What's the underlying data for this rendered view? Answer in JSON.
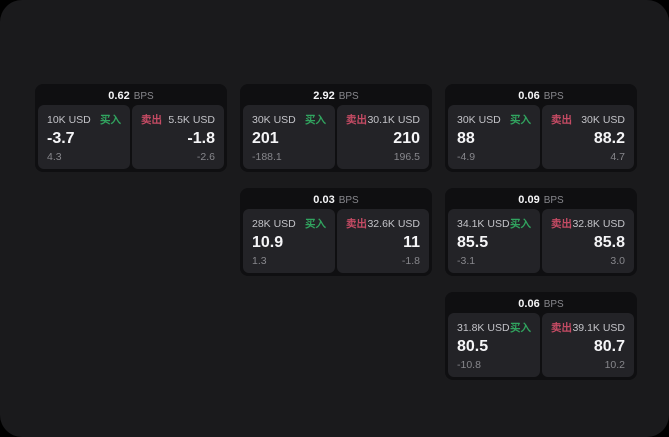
{
  "labels": {
    "buy": "买入",
    "sell": "卖出",
    "bps_suffix": "BPS"
  },
  "colors": {
    "background": "#000000",
    "panel": "#1a1a1c",
    "card": "#0f0f11",
    "pane": "#232327",
    "buy_green": "#31a45f",
    "sell_red": "#c54b64",
    "price_white": "#f5f5f7",
    "muted_gray": "#87878c",
    "notional_gray": "#c3c3c8"
  },
  "cards": [
    {
      "spread": "0.62",
      "buy": {
        "notional": "10K USD",
        "price": "-3.7",
        "change": "4.3"
      },
      "sell": {
        "notional": "5.5K USD",
        "price": "-1.8",
        "change": "-2.6"
      }
    },
    {
      "spread": "2.92",
      "buy": {
        "notional": "30K USD",
        "price": "201",
        "change": "-188.1"
      },
      "sell": {
        "notional": "30.1K USD",
        "price": "210",
        "change": "196.5"
      }
    },
    {
      "spread": "0.06",
      "buy": {
        "notional": "30K USD",
        "price": "88",
        "change": "-4.9"
      },
      "sell": {
        "notional": "30K USD",
        "price": "88.2",
        "change": "4.7"
      }
    },
    {
      "spread": "0.03",
      "buy": {
        "notional": "28K USD",
        "price": "10.9",
        "change": "1.3"
      },
      "sell": {
        "notional": "32.6K USD",
        "price": "11",
        "change": "-1.8"
      }
    },
    {
      "spread": "0.09",
      "buy": {
        "notional": "34.1K USD",
        "price": "85.5",
        "change": "-3.1"
      },
      "sell": {
        "notional": "32.8K USD",
        "price": "85.8",
        "change": "3.0"
      }
    },
    {
      "spread": "0.06",
      "buy": {
        "notional": "31.8K USD",
        "price": "80.5",
        "change": "-10.8"
      },
      "sell": {
        "notional": "39.1K USD",
        "price": "80.7",
        "change": "10.2"
      }
    }
  ]
}
